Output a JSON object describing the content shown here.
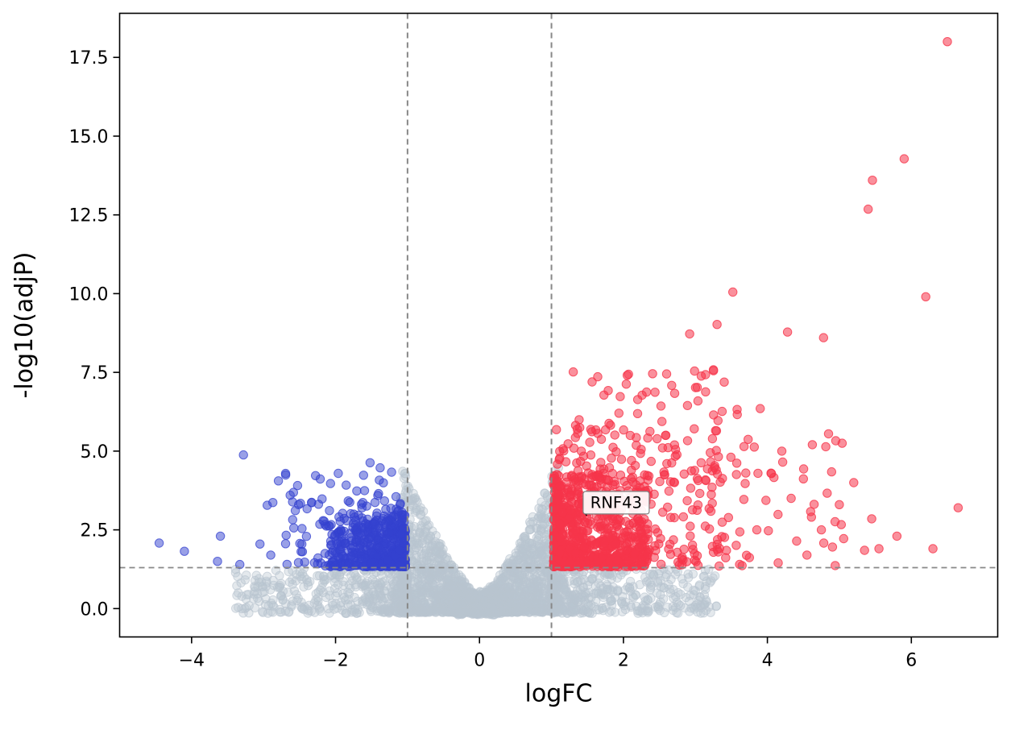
{
  "figure": {
    "background": "#ffffff"
  },
  "chart_data": {
    "type": "scatter",
    "title": "",
    "xlabel": "logFC",
    "ylabel": "-log10(adjP)",
    "xlim": [
      -5.0,
      7.2
    ],
    "ylim": [
      -0.9,
      18.9
    ],
    "xticks": [
      -4,
      -2,
      0,
      2,
      4,
      6
    ],
    "yticks": [
      0,
      2.5,
      5,
      7.5,
      10,
      12.5,
      15,
      17.5
    ],
    "grid": false,
    "legend": null,
    "point_radius": 5.2,
    "colors": {
      "up": "#f6354a",
      "down": "#3442cf",
      "ns": "#b9c4cf",
      "threshold_line": "#888888",
      "frame": "#000000",
      "annotation_border": "#808080",
      "annotation_bg": "#ffffff"
    },
    "thresholds": {
      "vlines": [
        -1,
        1
      ],
      "hline": 1.3,
      "dash": [
        7,
        5
      ]
    },
    "annotation": {
      "label": "RNF43",
      "point": [
        1.49,
        2.95
      ],
      "box": [
        1.44,
        3.72
      ]
    },
    "outliers_down": [
      [
        -3.28,
        4.88
      ],
      [
        -1.52,
        4.63
      ],
      [
        -1.38,
        4.47
      ],
      [
        -2.07,
        3.97
      ],
      [
        -2.63,
        3.6
      ],
      [
        -2.95,
        3.28
      ],
      [
        -2.58,
        2.56
      ],
      [
        -3.6,
        2.3
      ],
      [
        -4.45,
        2.08
      ],
      [
        -4.1,
        1.82
      ],
      [
        -3.64,
        1.5
      ],
      [
        -3.33,
        1.4
      ],
      [
        -2.9,
        1.7
      ],
      [
        -3.05,
        2.05
      ]
    ],
    "outliers_up": [
      [
        6.5,
        18.0
      ],
      [
        5.9,
        14.28
      ],
      [
        5.46,
        13.6
      ],
      [
        5.4,
        12.68
      ],
      [
        6.2,
        9.9
      ],
      [
        3.52,
        10.05
      ],
      [
        3.3,
        9.02
      ],
      [
        2.92,
        8.72
      ],
      [
        4.28,
        8.78
      ],
      [
        4.78,
        8.6
      ],
      [
        3.9,
        6.35
      ],
      [
        4.2,
        5.0
      ],
      [
        4.85,
        5.55
      ],
      [
        4.95,
        5.33
      ],
      [
        5.2,
        4.0
      ],
      [
        5.0,
        3.3
      ],
      [
        4.5,
        4.12
      ],
      [
        4.33,
        3.5
      ],
      [
        4.05,
        4.3
      ],
      [
        6.65,
        3.2
      ],
      [
        6.3,
        1.9
      ],
      [
        5.8,
        2.3
      ],
      [
        5.55,
        1.9
      ],
      [
        5.35,
        1.85
      ],
      [
        4.75,
        2.5
      ],
      [
        4.55,
        1.7
      ],
      [
        4.15,
        1.45
      ],
      [
        3.75,
        1.62
      ],
      [
        5.45,
        2.85
      ],
      [
        2.6,
        7.45
      ]
    ],
    "clusters": [
      {
        "series": "ns",
        "mode": "wedge",
        "n": 780,
        "x0": -0.05,
        "x1": -1.1,
        "xp": 0.85,
        "y0": -0.12,
        "peak0": 0.5,
        "peak1": 4.7,
        "pp": 1.3,
        "yp": 1.7,
        "seed": 11
      },
      {
        "series": "ns",
        "mode": "wedge",
        "n": 780,
        "x0": 0.05,
        "x1": 1.1,
        "xp": 0.85,
        "y0": -0.12,
        "peak0": 0.5,
        "peak1": 4.7,
        "pp": 1.3,
        "yp": 1.7,
        "seed": 12
      },
      {
        "series": "ns",
        "mode": "box",
        "n": 280,
        "x0": -0.32,
        "x1": 0.32,
        "xp": 1.0,
        "y0": -0.2,
        "y1": 0.55,
        "yp": 1.1,
        "seed": 13
      },
      {
        "series": "ns",
        "mode": "box",
        "n": 430,
        "x0": -1.0,
        "x1": -3.4,
        "xp": 2.0,
        "y0": -0.15,
        "y1": 1.28,
        "yp": 1.3,
        "seed": 14
      },
      {
        "series": "ns",
        "mode": "box",
        "n": 430,
        "x0": 1.0,
        "x1": 3.3,
        "xp": 2.0,
        "y0": -0.15,
        "y1": 1.28,
        "yp": 1.3,
        "seed": 15
      },
      {
        "series": "down",
        "mode": "box",
        "n": 440,
        "x0": -1.03,
        "x1": -2.1,
        "xp": 1.8,
        "y0": 1.33,
        "y1": 3.0,
        "yp": 1.8,
        "seed": 21
      },
      {
        "series": "down",
        "mode": "box",
        "n": 120,
        "x0": -1.05,
        "x1": -2.7,
        "xp": 1.4,
        "y0": 1.35,
        "y1": 3.7,
        "yp": 1.4,
        "seed": 22
      },
      {
        "series": "down",
        "mode": "box",
        "n": 26,
        "x0": -1.1,
        "x1": -2.9,
        "xp": 1.1,
        "y0": 3.1,
        "y1": 4.35,
        "yp": 1.0,
        "seed": 23
      },
      {
        "series": "up",
        "mode": "box",
        "n": 680,
        "x0": 1.03,
        "x1": 2.35,
        "xp": 1.7,
        "y0": 1.33,
        "y1": 4.25,
        "yp": 1.7,
        "seed": 31
      },
      {
        "series": "up",
        "mode": "box",
        "n": 270,
        "x0": 1.06,
        "x1": 3.35,
        "xp": 1.3,
        "y0": 1.35,
        "y1": 5.7,
        "yp": 1.5,
        "seed": 32
      },
      {
        "series": "up",
        "mode": "box",
        "n": 75,
        "x0": 1.25,
        "x1": 3.7,
        "xp": 1.1,
        "y0": 4.0,
        "y1": 7.6,
        "yp": 1.3,
        "seed": 33
      },
      {
        "series": "up",
        "mode": "box",
        "n": 48,
        "x0": 3.0,
        "x1": 5.1,
        "xp": 1.1,
        "y0": 1.35,
        "y1": 5.6,
        "yp": 1.3,
        "seed": 34
      }
    ]
  }
}
